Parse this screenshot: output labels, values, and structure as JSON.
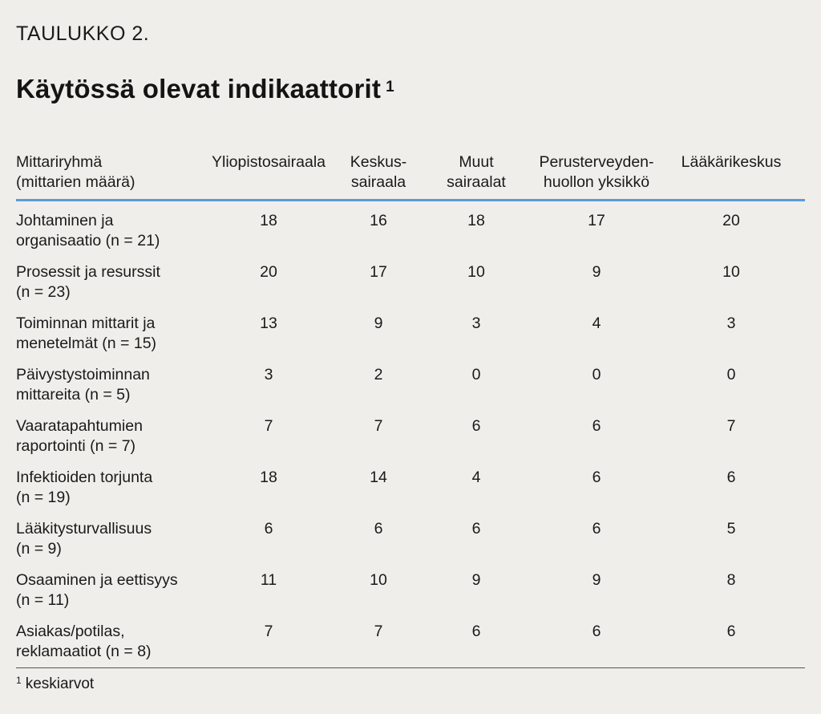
{
  "label": "TAULUKKO 2.",
  "title": "Käytössä olevat indikaattorit",
  "title_sup": "1",
  "columns": [
    "Mittariryhmä (mittarien määrä)",
    "Yliopistosairaala",
    "Keskus-sairaala",
    "Muut sairaalat",
    "Perusterveyden-huollon yksikkö",
    "Lääkärikeskus"
  ],
  "columns_display": [
    [
      "Mittariryhmä",
      "(mittarien määrä)"
    ],
    [
      "Yliopistosairaala",
      ""
    ],
    [
      "Keskus-",
      "sairaala"
    ],
    [
      "Muut",
      "sairaalat"
    ],
    [
      "Perusterveyden-",
      "huollon yksikkö"
    ],
    [
      "Lääkärikeskus",
      ""
    ]
  ],
  "rows": [
    {
      "group": [
        "Johtaminen ja",
        "organisaatio (n = 21)"
      ],
      "values": [
        "18",
        "16",
        "18",
        "17",
        "20"
      ]
    },
    {
      "group": [
        "Prosessit ja resurssit",
        "(n = 23)"
      ],
      "values": [
        "20",
        "17",
        "10",
        "9",
        "10"
      ]
    },
    {
      "group": [
        "Toiminnan mittarit ja",
        "menetelmät (n = 15)"
      ],
      "values": [
        "13",
        "9",
        "3",
        "4",
        "3"
      ]
    },
    {
      "group": [
        "Päivystystoiminnan",
        "mittareita (n = 5)"
      ],
      "values": [
        "3",
        "2",
        "0",
        "0",
        "0"
      ]
    },
    {
      "group": [
        "Vaaratapahtumien",
        "raportointi (n = 7)"
      ],
      "values": [
        "7",
        "7",
        "6",
        "6",
        "7"
      ]
    },
    {
      "group": [
        "Infektioiden torjunta",
        "(n = 19)"
      ],
      "values": [
        "18",
        "14",
        "4",
        "6",
        "6"
      ]
    },
    {
      "group": [
        "Lääkitysturvallisuus",
        "(n = 9)"
      ],
      "values": [
        "6",
        "6",
        "6",
        "6",
        "5"
      ]
    },
    {
      "group": [
        "Osaaminen ja eettisyys",
        "(n = 11)"
      ],
      "values": [
        "11",
        "10",
        "9",
        "9",
        "8"
      ]
    },
    {
      "group": [
        "Asiakas/potilas,",
        "reklamaatiot (n = 8)"
      ],
      "values": [
        "7",
        "7",
        "6",
        "6",
        "6"
      ]
    }
  ],
  "footnote_mark": "1",
  "footnote_text": "keskiarvot",
  "colors": {
    "background": "#efeeea",
    "header_rule": "#5b9bd5",
    "text": "#1a1a1a"
  }
}
